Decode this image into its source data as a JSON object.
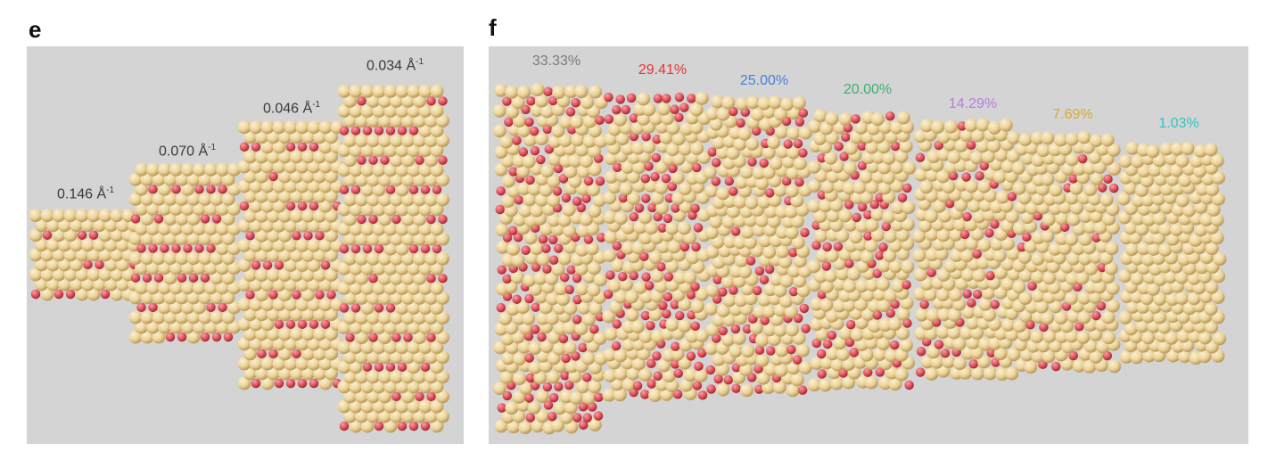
{
  "panel_e": {
    "letter": "e",
    "structures": [
      {
        "label": "0.146 Å",
        "superscript": "-1"
      },
      {
        "label": "0.070 Å",
        "superscript": "-1"
      },
      {
        "label": "0.046 Å",
        "superscript": "-1"
      },
      {
        "label": "0.034 Å",
        "superscript": "-1"
      }
    ],
    "label_color": "#3a3a3a"
  },
  "panel_f": {
    "letter": "f",
    "structures": [
      {
        "label": "33.33%",
        "color": "#7a7a7a",
        "oxygen_percent": 33.33
      },
      {
        "label": "29.41%",
        "color": "#e8343a",
        "oxygen_percent": 29.41
      },
      {
        "label": "25.00%",
        "color": "#4a7fd8",
        "oxygen_percent": 25.0
      },
      {
        "label": "20.00%",
        "color": "#3fae6e",
        "oxygen_percent": 20.0
      },
      {
        "label": "14.29%",
        "color": "#b77de0",
        "oxygen_percent": 14.29
      },
      {
        "label": "7.69%",
        "color": "#d6aa3a",
        "oxygen_percent": 7.69
      },
      {
        "label": "1.03%",
        "color": "#2ec4c4",
        "oxygen_percent": 1.03
      }
    ]
  },
  "colors": {
    "background": "#d4d4d4",
    "atom_host": "#ecd39a",
    "atom_oxygen": "#e0505a"
  }
}
